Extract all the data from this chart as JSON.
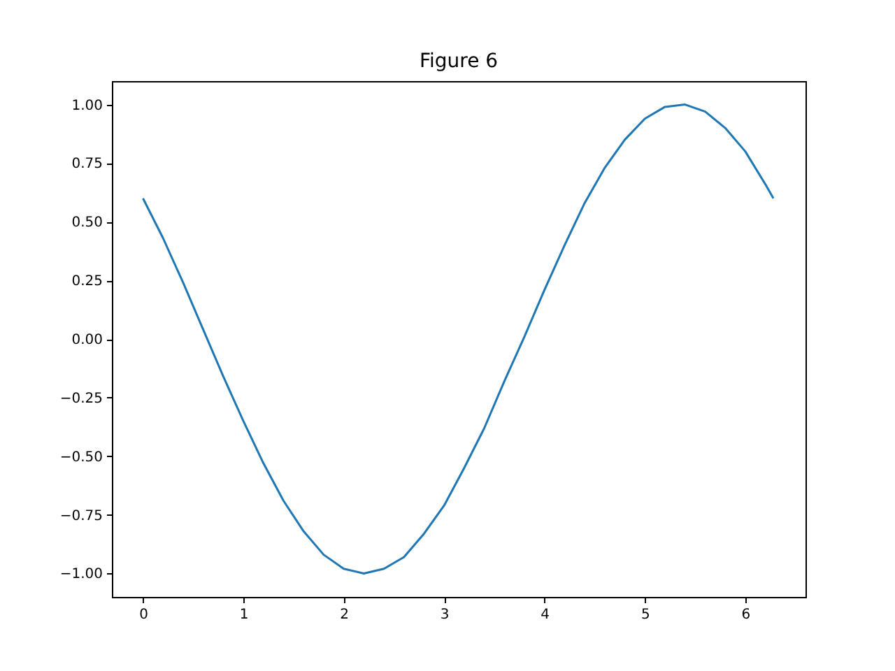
{
  "chart_data": {
    "type": "line",
    "title": "Figure 6",
    "x": [
      0,
      0.2,
      0.4,
      0.6,
      0.8,
      1.0,
      1.2,
      1.4,
      1.6,
      1.8,
      2.0,
      2.2,
      2.4,
      2.6,
      2.8,
      3.0,
      3.2,
      3.4,
      3.6,
      3.8,
      4.0,
      4.2,
      4.4,
      4.6,
      4.8,
      5.0,
      5.2,
      5.4,
      5.6,
      5.8,
      6.0,
      6.2,
      6.28
    ],
    "series": [
      {
        "color": "#1f77b4",
        "values": [
          0.6,
          0.43,
          0.24,
          0.04,
          -0.16,
          -0.35,
          -0.53,
          -0.69,
          -0.82,
          -0.92,
          -0.98,
          -1.0,
          -0.98,
          -0.93,
          -0.83,
          -0.71,
          -0.55,
          -0.38,
          -0.18,
          0.01,
          0.21,
          0.4,
          0.58,
          0.73,
          0.85,
          0.94,
          0.99,
          1.0,
          0.97,
          0.9,
          0.8,
          0.66,
          0.6
        ]
      }
    ],
    "xlim": [
      -0.31,
      6.6
    ],
    "xticks": [
      0,
      1,
      2,
      3,
      4,
      5,
      6
    ],
    "ylim": [
      -1.1,
      1.1
    ],
    "yticks": [
      {
        "value": -1,
        "label": "−1.00"
      },
      {
        "value": -0.75,
        "label": "−0.75"
      },
      {
        "value": -0.5,
        "label": "−0.50"
      },
      {
        "value": -0.25,
        "label": "−0.25"
      },
      {
        "value": 0,
        "label": "0.00"
      },
      {
        "value": 0.25,
        "label": "0.25"
      },
      {
        "value": 0.5,
        "label": "0.50"
      },
      {
        "value": 0.75,
        "label": "0.75"
      },
      {
        "value": 1,
        "label": "1.00"
      }
    ],
    "grid": false
  }
}
